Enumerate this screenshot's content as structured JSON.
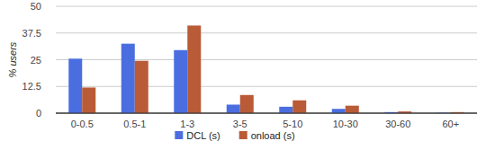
{
  "chart_data": {
    "type": "bar",
    "y_label": "% users",
    "categories": [
      "0-0.5",
      "0.5-1",
      "1-3",
      "3-5",
      "5-10",
      "10-30",
      "30-60",
      "60+"
    ],
    "series": [
      {
        "name": "DCL (s)",
        "color": "#4a6ee0",
        "values": [
          25.5,
          32.5,
          29.5,
          4,
          3,
          2,
          0.5,
          0.2
        ]
      },
      {
        "name": "onload (s)",
        "color": "#b85b36",
        "values": [
          12,
          24.5,
          41,
          8.5,
          6,
          3.5,
          0.8,
          0.5
        ]
      }
    ],
    "ylim": [
      0,
      50
    ],
    "yticks": [
      0,
      12.5,
      25,
      37.5,
      50
    ],
    "grid": true,
    "legend": "bottom"
  }
}
